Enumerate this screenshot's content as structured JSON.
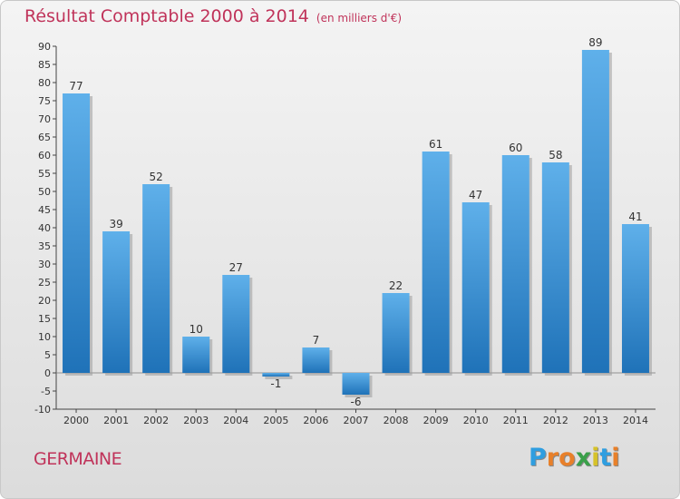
{
  "chart_data": {
    "type": "bar",
    "title": "Résultat Comptable 2000 à 2014",
    "subtitle": "(en milliers d'€)",
    "categories": [
      "2000",
      "2001",
      "2002",
      "2003",
      "2004",
      "2005",
      "2006",
      "2007",
      "2008",
      "2009",
      "2010",
      "2011",
      "2012",
      "2013",
      "2014"
    ],
    "values": [
      77,
      39,
      52,
      10,
      27,
      -1,
      7,
      -6,
      22,
      61,
      47,
      60,
      58,
      89,
      41
    ],
    "ylim": [
      -10,
      90
    ],
    "yticks": [
      -10,
      -5,
      0,
      5,
      10,
      15,
      20,
      25,
      30,
      35,
      40,
      45,
      50,
      55,
      60,
      65,
      70,
      75,
      80,
      85,
      90
    ],
    "xlabel": "",
    "ylabel": "",
    "grid": false,
    "bar_color": "#3d8fd4"
  },
  "footer": {
    "commune": "GERMAINE",
    "brand_letters": [
      "P",
      "r",
      "o",
      "x",
      "i",
      "t",
      "i"
    ],
    "brand_colors": [
      "#2f9ee0",
      "#e8802a",
      "#e8802a",
      "#3aa04a",
      "#d6c22a",
      "#2f9ee0",
      "#e8802a"
    ]
  }
}
